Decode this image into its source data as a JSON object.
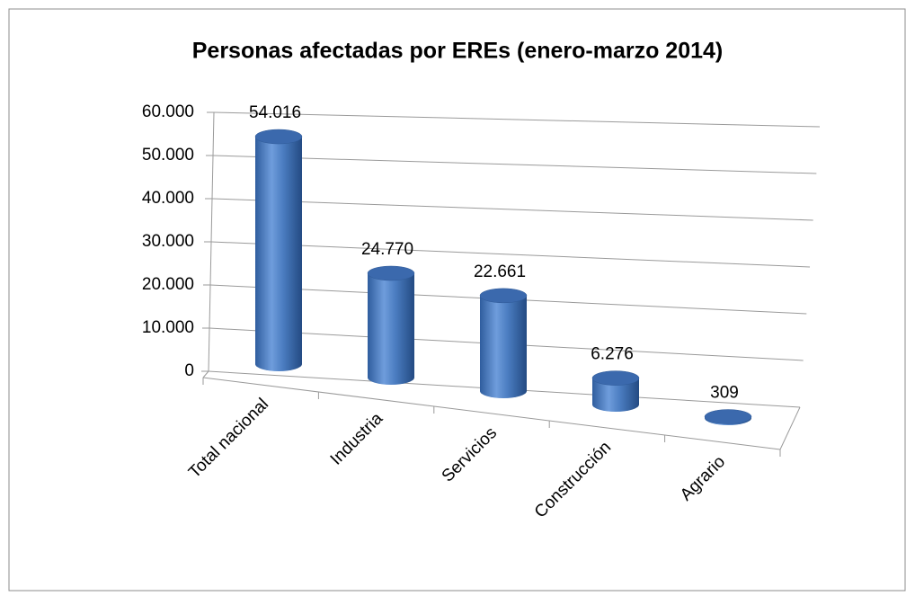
{
  "chart_data": {
    "type": "bar3d",
    "title": "Personas afectadas por EREs (enero-marzo 2014)",
    "categories": [
      "Total nacional",
      "Industria",
      "Servicios",
      "Construcción",
      "Agrario"
    ],
    "values": [
      54016,
      24770,
      22661,
      6276,
      309
    ],
    "value_labels": [
      "54.016",
      "24.770",
      "22.661",
      "6.276",
      "309"
    ],
    "color": "#4a7cc0",
    "ylim": [
      0,
      60000
    ],
    "yticks": [
      0,
      {
        "value": 10000,
        "label": "10.000"
      },
      {
        "value": 20000,
        "label": "20.000"
      },
      {
        "value": 30000,
        "label": "30.000"
      },
      {
        "value": 40000,
        "label": "40.000"
      },
      {
        "value": 50000,
        "label": "50.000"
      },
      {
        "value": 60000,
        "label": "60.000"
      }
    ],
    "grid": true
  }
}
